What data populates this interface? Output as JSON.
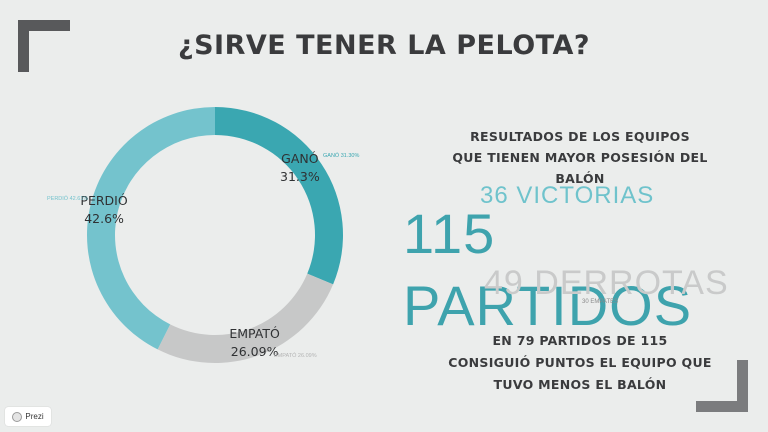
{
  "title": "¿SIRVE TENER LA PELOTA?",
  "chart_data": {
    "type": "pie",
    "categories": [
      "GANÓ",
      "EMPATÓ",
      "PERDIÓ"
    ],
    "values": [
      31.3,
      26.09,
      42.6
    ],
    "slice_labels": [
      {
        "name": "GANÓ",
        "value_text": "31.3%",
        "small_label": "GANÓ 31.30%"
      },
      {
        "name": "EMPATÓ",
        "value_text": "26.09%",
        "small_label": "EMPATÓ 26.09%"
      },
      {
        "name": "PERDIÓ",
        "value_text": "42.6%",
        "small_label": "PERDIÓ 42.61%"
      }
    ],
    "colors": [
      "#3aa7b1",
      "#c7c8c8",
      "#74c3cd"
    ]
  },
  "stats": {
    "header_line1": "RESULTADOS DE LOS EQUIPOS",
    "header_line2": "QUE TIENEN MAYOR POSESIÓN DEL BALÓN",
    "victorias": "36 VICTORIAS",
    "partidos": "115 PARTIDOS",
    "derrotas": "49 DERROTAS",
    "empates": "30 EMPATES",
    "footer_line1": "EN 79 PARTIDOS DE 115",
    "footer_line2": "CONSIGUIÓ PUNTOS EL EQUIPO QUE",
    "footer_line3": "TUVO MENOS EL BALÓN"
  },
  "badge": {
    "label": "Prezi"
  }
}
